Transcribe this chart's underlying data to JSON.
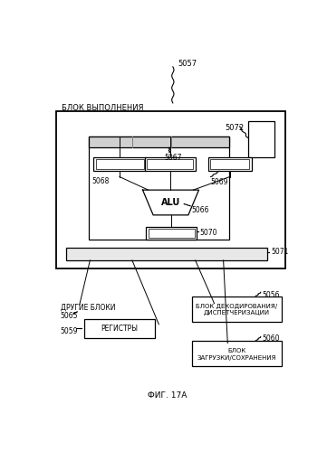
{
  "bg_color": "#ffffff",
  "fig_title": "ФИГ. 17А",
  "label_5057": "5057",
  "label_blok_vyp": "БЛОК ВЫПОЛНЕНИЯ",
  "label_5072": "5072",
  "label_5068": "5068",
  "label_5067": "5067",
  "label_5069": "5069",
  "label_alu": "ALU",
  "label_5066": "5066",
  "label_5070": "5070",
  "label_5071": "5071",
  "label_drugie": "ДРУГИЕ БЛОКИ",
  "label_5065": "5065",
  "label_5059": "5059",
  "label_registry": "РЕГИСТРЫ",
  "label_decode1": "БЛОК ДЕКОДИРОВАНИЯ/",
  "label_decode2": "ДИСПЕТЧЕРИЗАЦИИ",
  "label_5056": "5056",
  "label_load1": "БЛОК",
  "label_load2": "ЗАГРУЗКИ/СОХРАНЕНИЯ",
  "label_5060": "5060"
}
